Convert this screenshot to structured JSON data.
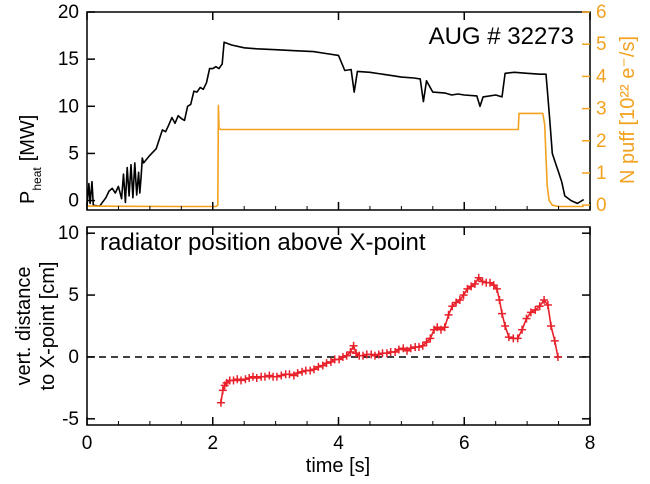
{
  "colors": {
    "heating": "#000000",
    "puff": "#f3a21f",
    "radiator": "#e8202a",
    "axis": "#000000"
  },
  "chart_data": [
    {
      "type": "line",
      "panel": "top",
      "annotation": "AUG # 32273",
      "xlabel": "",
      "ylabel_main": "P",
      "ylabel_sub": "heat",
      "ylabel_unit": "[MW]",
      "y2label": "N puff [10²² e⁻/s]",
      "xlim": [
        0,
        8
      ],
      "ylim": [
        -1,
        20
      ],
      "y2lim": [
        -0.15,
        6
      ],
      "xticks": [
        "0",
        "2",
        "4",
        "6",
        "8"
      ],
      "yticks": [
        "0",
        "5",
        "10",
        "15",
        "20"
      ],
      "y2ticks": [
        "0",
        "1",
        "2",
        "3",
        "4",
        "5",
        "6"
      ],
      "series": [
        {
          "axis": "left",
          "color": "#000000",
          "points": [
            [
              0.0,
              -0.5
            ],
            [
              0.03,
              1.8
            ],
            [
              0.05,
              -0.3
            ],
            [
              0.08,
              2.0
            ],
            [
              0.1,
              -0.5
            ],
            [
              0.2,
              -0.6
            ],
            [
              0.3,
              0.3
            ],
            [
              0.35,
              1.0
            ],
            [
              0.4,
              1.3
            ],
            [
              0.45,
              0.8
            ],
            [
              0.5,
              1.5
            ],
            [
              0.55,
              0.2
            ],
            [
              0.58,
              2.8
            ],
            [
              0.61,
              -0.2
            ],
            [
              0.64,
              3.5
            ],
            [
              0.67,
              0.5
            ],
            [
              0.7,
              3.8
            ],
            [
              0.73,
              0.3
            ],
            [
              0.76,
              4.0
            ],
            [
              0.79,
              0.6
            ],
            [
              0.82,
              3.0
            ],
            [
              0.84,
              0.8
            ],
            [
              0.86,
              2.5
            ],
            [
              0.88,
              4.5
            ],
            [
              0.9,
              4.0
            ],
            [
              1.0,
              4.8
            ],
            [
              1.1,
              5.5
            ],
            [
              1.15,
              6.5
            ],
            [
              1.2,
              7.5
            ],
            [
              1.25,
              7.3
            ],
            [
              1.3,
              8.0
            ],
            [
              1.35,
              8.8
            ],
            [
              1.4,
              8.2
            ],
            [
              1.45,
              9.0
            ],
            [
              1.5,
              8.7
            ],
            [
              1.55,
              8.5
            ],
            [
              1.6,
              10.0
            ],
            [
              1.65,
              10.2
            ],
            [
              1.7,
              11.6
            ],
            [
              1.75,
              11.5
            ],
            [
              1.8,
              12.0
            ],
            [
              1.85,
              11.8
            ],
            [
              1.9,
              12.5
            ],
            [
              1.95,
              14.0
            ],
            [
              2.0,
              14.0
            ],
            [
              2.05,
              14.2
            ],
            [
              2.1,
              14.0
            ],
            [
              2.15,
              14.5
            ],
            [
              2.18,
              16.8
            ],
            [
              2.3,
              16.5
            ],
            [
              2.5,
              16.2
            ],
            [
              2.7,
              16.1
            ],
            [
              3.0,
              16.0
            ],
            [
              3.3,
              15.9
            ],
            [
              3.6,
              15.8
            ],
            [
              3.8,
              15.6
            ],
            [
              4.0,
              15.4
            ],
            [
              4.1,
              13.8
            ],
            [
              4.2,
              13.9
            ],
            [
              4.25,
              11.5
            ],
            [
              4.3,
              13.7
            ],
            [
              4.5,
              13.6
            ],
            [
              4.7,
              13.4
            ],
            [
              4.9,
              13.2
            ],
            [
              5.0,
              13.1
            ],
            [
              5.2,
              13.0
            ],
            [
              5.3,
              12.9
            ],
            [
              5.35,
              10.5
            ],
            [
              5.4,
              12.7
            ],
            [
              5.5,
              11.5
            ],
            [
              5.7,
              11.4
            ],
            [
              5.8,
              11.2
            ],
            [
              5.9,
              11.3
            ],
            [
              6.0,
              11.2
            ],
            [
              6.2,
              11.1
            ],
            [
              6.25,
              10.0
            ],
            [
              6.3,
              11.0
            ],
            [
              6.5,
              11.2
            ],
            [
              6.6,
              11.0
            ],
            [
              6.65,
              13.5
            ],
            [
              6.8,
              13.6
            ],
            [
              7.0,
              13.5
            ],
            [
              7.2,
              13.4
            ],
            [
              7.3,
              13.4
            ],
            [
              7.33,
              11.0
            ],
            [
              7.36,
              8.5
            ],
            [
              7.4,
              5.0
            ],
            [
              7.45,
              4.0
            ],
            [
              7.5,
              3.0
            ],
            [
              7.55,
              2.0
            ],
            [
              7.6,
              0.5
            ],
            [
              7.7,
              0.0
            ],
            [
              7.8,
              -0.3
            ],
            [
              7.9,
              0.1
            ]
          ]
        },
        {
          "axis": "right",
          "color": "#f3a21f",
          "points": [
            [
              0.0,
              -0.03
            ],
            [
              1.5,
              -0.04
            ],
            [
              2.05,
              -0.04
            ],
            [
              2.08,
              0.0
            ],
            [
              2.09,
              3.1
            ],
            [
              2.1,
              2.4
            ],
            [
              2.12,
              2.35
            ],
            [
              3.0,
              2.35
            ],
            [
              4.0,
              2.35
            ],
            [
              5.0,
              2.35
            ],
            [
              6.0,
              2.35
            ],
            [
              6.86,
              2.35
            ],
            [
              6.87,
              2.85
            ],
            [
              7.25,
              2.85
            ],
            [
              7.28,
              2.5
            ],
            [
              7.3,
              1.5
            ],
            [
              7.32,
              0.6
            ],
            [
              7.35,
              0.15
            ],
            [
              7.4,
              0.0
            ],
            [
              7.5,
              -0.04
            ],
            [
              7.9,
              -0.04
            ]
          ]
        }
      ]
    },
    {
      "type": "line",
      "panel": "bottom",
      "annotation": "radiator position above X-point",
      "xlabel": "time [s]",
      "ylabel_lines": [
        "vert. distance",
        "to X-point [cm]"
      ],
      "xlim": [
        0,
        8
      ],
      "ylim": [
        -5.5,
        10.5
      ],
      "xticks": [
        "0",
        "2",
        "4",
        "6",
        "8"
      ],
      "yticks": [
        "-5",
        "0",
        "5",
        "10"
      ],
      "reference_line_y": 0,
      "series": [
        {
          "color": "#e8202a",
          "marker": "+",
          "points": [
            [
              2.13,
              -3.7
            ],
            [
              2.16,
              -2.7
            ],
            [
              2.19,
              -2.3
            ],
            [
              2.22,
              -2.1
            ],
            [
              2.27,
              -1.9
            ],
            [
              2.33,
              -1.9
            ],
            [
              2.39,
              -1.8
            ],
            [
              2.45,
              -1.9
            ],
            [
              2.52,
              -1.8
            ],
            [
              2.58,
              -1.7
            ],
            [
              2.64,
              -1.6
            ],
            [
              2.7,
              -1.7
            ],
            [
              2.77,
              -1.6
            ],
            [
              2.83,
              -1.6
            ],
            [
              2.9,
              -1.5
            ],
            [
              2.96,
              -1.6
            ],
            [
              3.02,
              -1.6
            ],
            [
              3.09,
              -1.5
            ],
            [
              3.16,
              -1.4
            ],
            [
              3.22,
              -1.4
            ],
            [
              3.29,
              -1.5
            ],
            [
              3.35,
              -1.3
            ],
            [
              3.42,
              -1.2
            ],
            [
              3.48,
              -1.1
            ],
            [
              3.55,
              -1.1
            ],
            [
              3.61,
              -1.0
            ],
            [
              3.68,
              -0.8
            ],
            [
              3.75,
              -0.7
            ],
            [
              3.81,
              -0.5
            ],
            [
              3.88,
              -0.4
            ],
            [
              3.94,
              -0.2
            ],
            [
              4.01,
              -0.2
            ],
            [
              4.07,
              0.0
            ],
            [
              4.13,
              0.1
            ],
            [
              4.19,
              0.4
            ],
            [
              4.24,
              0.9
            ],
            [
              4.28,
              0.3
            ],
            [
              4.33,
              0.1
            ],
            [
              4.39,
              0.1
            ],
            [
              4.45,
              0.2
            ],
            [
              4.52,
              0.2
            ],
            [
              4.58,
              0.1
            ],
            [
              4.64,
              0.2
            ],
            [
              4.7,
              0.3
            ],
            [
              4.77,
              0.3
            ],
            [
              4.83,
              0.4
            ],
            [
              4.9,
              0.4
            ],
            [
              4.96,
              0.6
            ],
            [
              5.03,
              0.7
            ],
            [
              5.09,
              0.5
            ],
            [
              5.15,
              0.7
            ],
            [
              5.22,
              0.8
            ],
            [
              5.28,
              0.8
            ],
            [
              5.34,
              0.9
            ],
            [
              5.4,
              1.2
            ],
            [
              5.46,
              1.5
            ],
            [
              5.52,
              2.2
            ],
            [
              5.57,
              2.4
            ],
            [
              5.63,
              2.2
            ],
            [
              5.69,
              2.4
            ],
            [
              5.75,
              3.4
            ],
            [
              5.81,
              4.1
            ],
            [
              5.87,
              4.4
            ],
            [
              5.93,
              4.6
            ],
            [
              5.99,
              5.0
            ],
            [
              6.05,
              5.5
            ],
            [
              6.11,
              5.7
            ],
            [
              6.17,
              5.9
            ],
            [
              6.23,
              6.4
            ],
            [
              6.29,
              6.1
            ],
            [
              6.35,
              6.0
            ],
            [
              6.41,
              6.0
            ],
            [
              6.47,
              5.8
            ],
            [
              6.52,
              5.5
            ],
            [
              6.56,
              4.6
            ],
            [
              6.6,
              3.5
            ],
            [
              6.65,
              2.5
            ],
            [
              6.71,
              1.6
            ],
            [
              6.78,
              1.5
            ],
            [
              6.85,
              1.5
            ],
            [
              6.92,
              2.2
            ],
            [
              6.99,
              3.1
            ],
            [
              7.06,
              3.6
            ],
            [
              7.13,
              3.8
            ],
            [
              7.2,
              4.1
            ],
            [
              7.27,
              4.6
            ],
            [
              7.33,
              4.2
            ],
            [
              7.38,
              2.5
            ],
            [
              7.44,
              1.3
            ],
            [
              7.49,
              0.0
            ]
          ]
        }
      ]
    }
  ]
}
